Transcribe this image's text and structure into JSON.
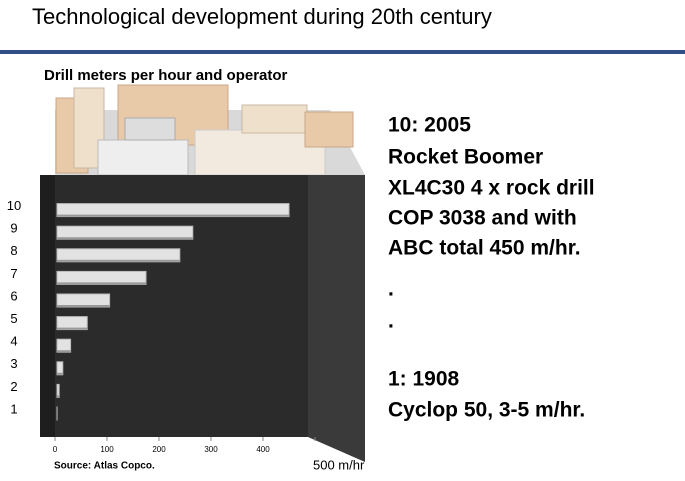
{
  "chart_data": {
    "type": "bar",
    "title": "Technological development during 20th century",
    "subtitle": "Drill meters per hour and operator",
    "source": "Source: Atlas Copco.",
    "categories": [
      "1",
      "2",
      "3",
      "4",
      "5",
      "6",
      "7",
      "8",
      "9",
      "10"
    ],
    "values": [
      4,
      8,
      15,
      30,
      62,
      105,
      175,
      240,
      265,
      450
    ],
    "color": "#e2e2e2",
    "xlim": [
      0,
      500
    ],
    "xticks": [
      0,
      100,
      200,
      300,
      400,
      {
        "value": 500,
        "label": "500 m/hr"
      }
    ],
    "annotations": [
      "10: 2005",
      "Rocket Boomer",
      "XL4C30 4 x rock drill",
      "COP 3038 and with",
      "ABC total 450 m/hr.",
      ".",
      ".",
      "1: 1908",
      "Cyclop 50, 3-5 m/hr."
    ]
  }
}
